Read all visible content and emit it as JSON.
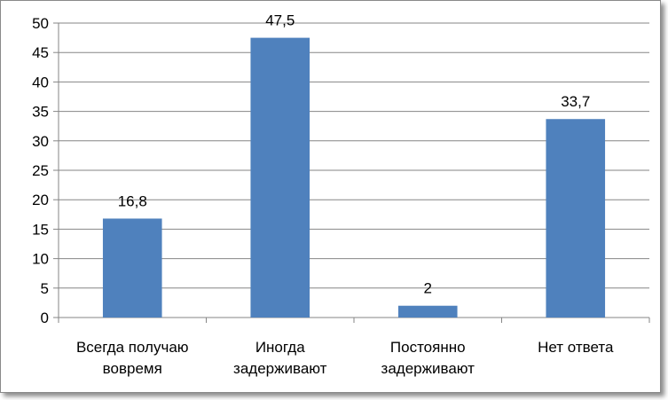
{
  "chart_data": {
    "type": "bar",
    "categories": [
      [
        "Всегда получаю",
        "вовремя"
      ],
      [
        "Иногда",
        "задерживают"
      ],
      [
        "Постоянно",
        "задерживают"
      ],
      [
        "Нет ответа"
      ]
    ],
    "values": [
      16.8,
      47.5,
      2,
      33.7
    ],
    "data_labels": [
      "16,8",
      "47,5",
      "2",
      "33,7"
    ],
    "ylim": [
      0,
      50
    ],
    "yticks": [
      0,
      5,
      10,
      15,
      20,
      25,
      30,
      35,
      40,
      45,
      50
    ],
    "grid": true,
    "legend": "none",
    "title": "",
    "xlabel": "",
    "ylabel": "",
    "colors": {
      "bar": "#4f81bd",
      "grid": "#868686",
      "axis": "#868686"
    }
  }
}
